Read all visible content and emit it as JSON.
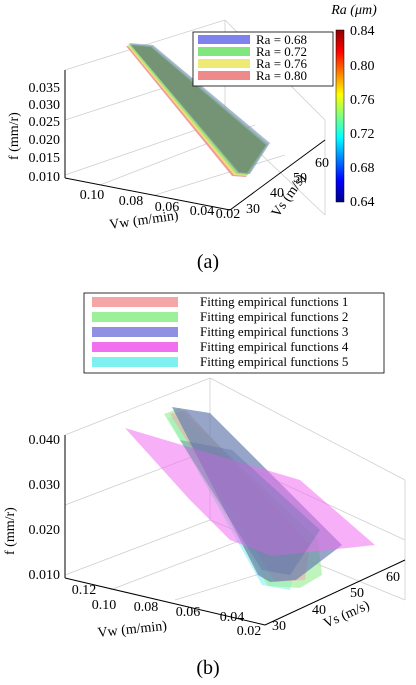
{
  "chart_data": [
    {
      "type": "surface3d",
      "caption": "(a)",
      "title": "",
      "axes": {
        "vw": {
          "label": "Vw (m/min)",
          "ticks": [
            "0.10",
            "0.08",
            "0.06",
            "0.04",
            "0.02"
          ]
        },
        "vs": {
          "label": "Vs (m/s)",
          "ticks": [
            "30",
            "40",
            "50",
            "60"
          ]
        },
        "f": {
          "label": "f (mm/r)",
          "ticks": [
            "0.010",
            "0.015",
            "0.020",
            "0.025",
            "0.030",
            "0.035"
          ]
        }
      },
      "legend": {
        "placement": "top-right",
        "entries": [
          {
            "name": "Ra = 0.68",
            "color": "#7f82ec"
          },
          {
            "name": "Ra = 0.72",
            "color": "#82e67e"
          },
          {
            "name": "Ra = 0.76",
            "color": "#eeea74"
          },
          {
            "name": "Ra = 0.80",
            "color": "#ef8a8a"
          }
        ]
      },
      "colorbar": {
        "label": "Ra (μm)",
        "ticks": [
          "0.84",
          "0.80",
          "0.76",
          "0.72",
          "0.68",
          "0.64"
        ],
        "range": [
          0.64,
          0.84
        ]
      }
    },
    {
      "type": "surface3d",
      "caption": "(b)",
      "title": "",
      "axes": {
        "vw": {
          "label": "Vw (m/min)",
          "ticks": [
            "0.12",
            "0.10",
            "0.08",
            "0.06",
            "0.04",
            "0.02"
          ]
        },
        "vs": {
          "label": "Vs (m/s)",
          "ticks": [
            "30",
            "40",
            "50",
            "60"
          ]
        },
        "f": {
          "label": "f (mm/r)",
          "ticks": [
            "0.010",
            "0.020",
            "0.030",
            "0.040"
          ]
        }
      },
      "legend": {
        "placement": "top",
        "entries": [
          {
            "name": "Fitting empirical functions 1",
            "color": "#f4a6a6"
          },
          {
            "name": "Fitting empirical functions 2",
            "color": "#9cf09a"
          },
          {
            "name": "Fitting empirical functions 3",
            "color": "#8f8fe4"
          },
          {
            "name": "Fitting empirical functions 4",
            "color": "#f070f0"
          },
          {
            "name": "Fitting empirical functions 5",
            "color": "#7ff0f0"
          }
        ]
      }
    }
  ]
}
